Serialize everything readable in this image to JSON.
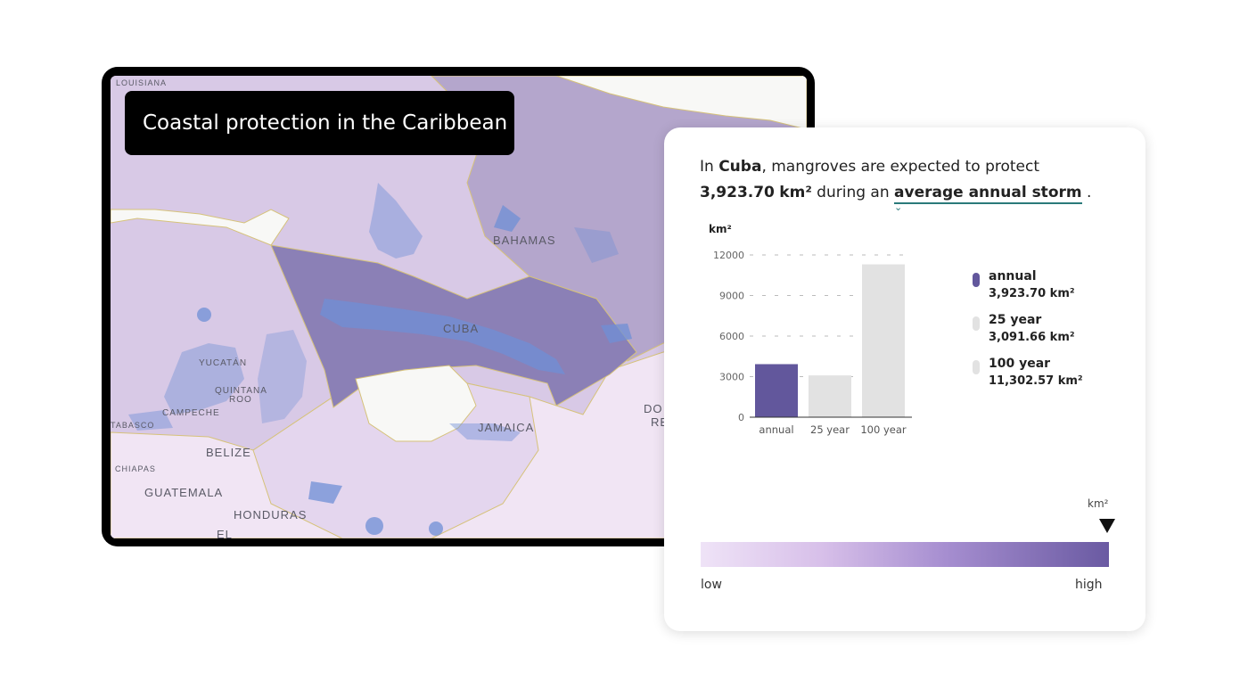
{
  "map": {
    "title": "Coastal protection in the Caribbean",
    "labels": [
      "LOUISIANA",
      "BAHAMAS",
      "CUBA",
      "YUCATÁN",
      "QUINTANA",
      "ROO",
      "CAMPECHE",
      "TABASCO",
      "BELIZE",
      "CHIAPAS",
      "GUATEMALA",
      "HONDURAS",
      "JAMAICA",
      "DO",
      "RE",
      "EL"
    ]
  },
  "summary": {
    "prefix": "In ",
    "country": "Cuba",
    "middle": ", mangroves are expected to protect ",
    "value": "3,923.70",
    "unit": "km²",
    "during": " during an ",
    "storm": "average annual storm",
    "suffix": " ."
  },
  "chart_data": {
    "type": "bar",
    "ylabel": "km²",
    "categories": [
      "annual",
      "25 year",
      "100 year"
    ],
    "values": [
      3923.7,
      3091.66,
      11302.57
    ],
    "colors": [
      "#62579c",
      "#e2e2e2",
      "#e2e2e2"
    ],
    "yticks": [
      "12000",
      "9000",
      "6000",
      "3000",
      "0"
    ],
    "ylim": [
      0,
      12000
    ],
    "grid": true
  },
  "legend": [
    {
      "name": "annual",
      "value": "3,923.70  km²",
      "color": "#62579c"
    },
    {
      "name": "25 year",
      "value": "3,091.66  km²",
      "color": "#e2e2e2"
    },
    {
      "name": "100 year",
      "value": "11,302.57  km²",
      "color": "#e2e2e2"
    }
  ],
  "scale": {
    "unit": "km²",
    "low": "low",
    "high": "high"
  }
}
